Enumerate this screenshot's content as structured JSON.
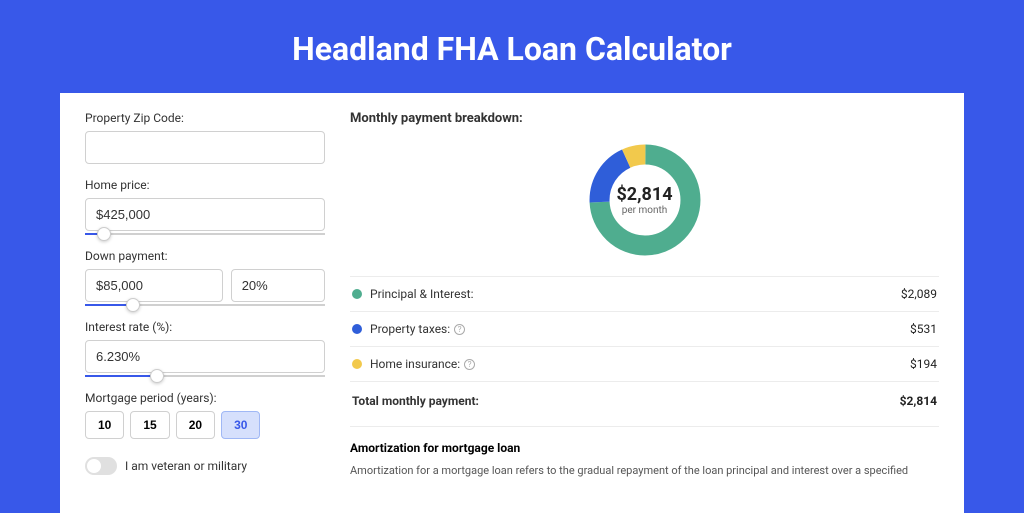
{
  "page": {
    "title": "Headland FHA Loan Calculator"
  },
  "colors": {
    "background": "#3858e9",
    "panel": "#ffffff",
    "input_border": "#d0d0d0",
    "slider_fill": "#3858e9",
    "active_period_bg": "#d6e0fc"
  },
  "form": {
    "zip": {
      "label": "Property Zip Code:",
      "value": ""
    },
    "home_price": {
      "label": "Home price:",
      "value": "$425,000",
      "slider_pct": 8
    },
    "down_payment": {
      "label": "Down payment:",
      "value": "$85,000",
      "percent": "20%",
      "slider_pct": 20
    },
    "interest_rate": {
      "label": "Interest rate (%):",
      "value": "6.230%",
      "slider_pct": 30
    },
    "mortgage_period": {
      "label": "Mortgage period (years):",
      "options": [
        "10",
        "15",
        "20",
        "30"
      ],
      "active": "30"
    },
    "veteran": {
      "label": "I am veteran or military",
      "checked": false
    }
  },
  "breakdown": {
    "title": "Monthly payment breakdown:",
    "donut": {
      "amount": "$2,814",
      "sub": "per month",
      "slices": [
        {
          "color": "#4fad8f",
          "pct": 74.2,
          "label": "Principal & Interest"
        },
        {
          "color": "#2f5ed9",
          "pct": 18.9,
          "label": "Property taxes"
        },
        {
          "color": "#f2c94c",
          "pct": 6.9,
          "label": "Home insurance"
        }
      ]
    },
    "rows": [
      {
        "dot_color": "#4fad8f",
        "label": "Principal & Interest:",
        "value": "$2,089",
        "help": false
      },
      {
        "dot_color": "#2f5ed9",
        "label": "Property taxes:",
        "value": "$531",
        "help": true
      },
      {
        "dot_color": "#f2c94c",
        "label": "Home insurance:",
        "value": "$194",
        "help": true
      }
    ],
    "total": {
      "label": "Total monthly payment:",
      "value": "$2,814"
    }
  },
  "amortization": {
    "title": "Amortization for mortgage loan",
    "text": "Amortization for a mortgage loan refers to the gradual repayment of the loan principal and interest over a specified"
  }
}
